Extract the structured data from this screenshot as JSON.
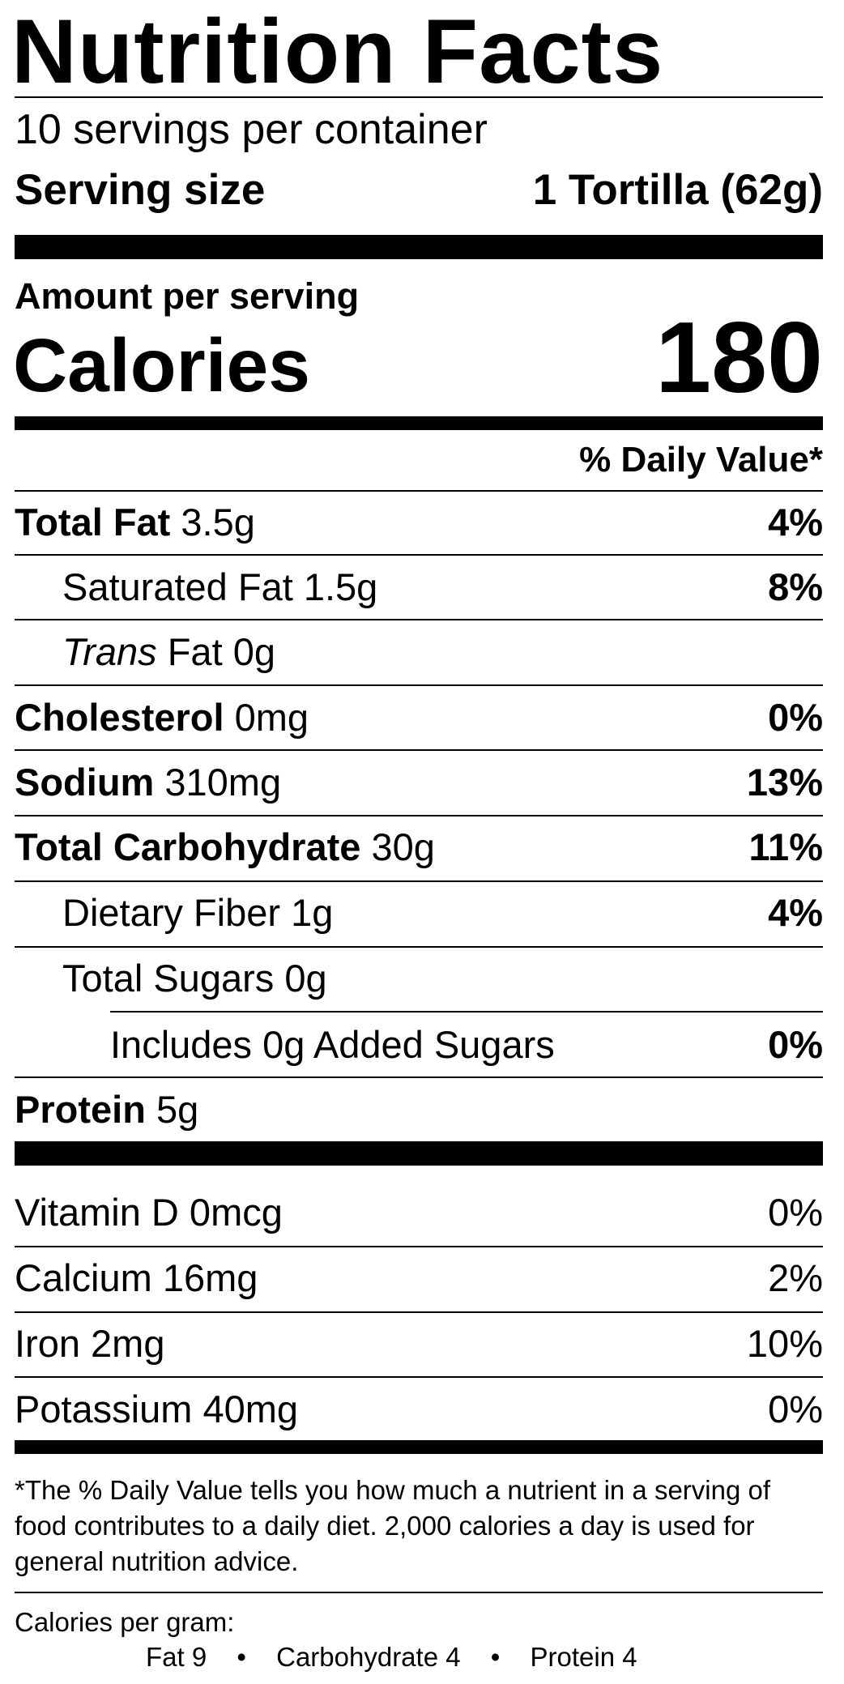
{
  "title": "Nutrition Facts",
  "servings_per_container": "10 servings per container",
  "serving_size": {
    "label": "Serving size",
    "value": "1 Tortilla (62g)"
  },
  "amount_per_serving": "Amount per serving",
  "calories": {
    "label": "Calories",
    "value": "180"
  },
  "daily_value_header": "% Daily Value*",
  "nutrients": {
    "total_fat": {
      "name": "Total Fat",
      "amount": "3.5g",
      "dv": "4%"
    },
    "saturated_fat": {
      "name": "Saturated Fat",
      "amount": "1.5g",
      "dv": "8%"
    },
    "trans_fat": {
      "name_italic": "Trans",
      "name": "Fat",
      "amount": "0g"
    },
    "cholesterol": {
      "name": "Cholesterol",
      "amount": "0mg",
      "dv": "0%"
    },
    "sodium": {
      "name": "Sodium",
      "amount": "310mg",
      "dv": "13%"
    },
    "total_carbohydrate": {
      "name": "Total Carbohydrate",
      "amount": "30g",
      "dv": "11%"
    },
    "dietary_fiber": {
      "name": "Dietary Fiber",
      "amount": "1g",
      "dv": "4%"
    },
    "total_sugars": {
      "name": "Total Sugars",
      "amount": "0g"
    },
    "added_sugars": {
      "text": "Includes 0g Added Sugars",
      "dv": "0%"
    },
    "protein": {
      "name": "Protein",
      "amount": "5g"
    }
  },
  "vitamins": {
    "vitamin_d": {
      "text": "Vitamin D 0mcg",
      "dv": "0%"
    },
    "calcium": {
      "text": "Calcium 16mg",
      "dv": "2%"
    },
    "iron": {
      "text": "Iron 2mg",
      "dv": "10%"
    },
    "potassium": {
      "text": "Potassium 40mg",
      "dv": "0%"
    }
  },
  "footnote": "*The % Daily Value tells you how much a nutrient in a serving of food contributes to a daily diet. 2,000 calories a day is used for general nutrition advice.",
  "calories_per_gram": {
    "label": "Calories per gram:",
    "fat": "Fat 9",
    "carbohydrate": "Carbohydrate 4",
    "protein": "Protein 4",
    "separator": "•"
  }
}
